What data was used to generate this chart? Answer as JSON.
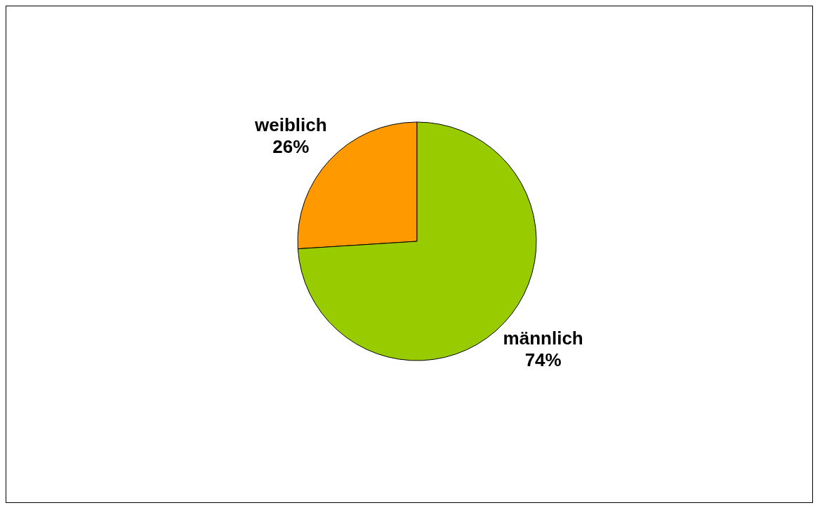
{
  "chart_data": {
    "type": "pie",
    "categories": [
      "weiblich",
      "männlich"
    ],
    "values": [
      26,
      74
    ],
    "colors": [
      "#ff9900",
      "#99cc00"
    ],
    "value_labels": [
      "26%",
      "74%"
    ]
  }
}
